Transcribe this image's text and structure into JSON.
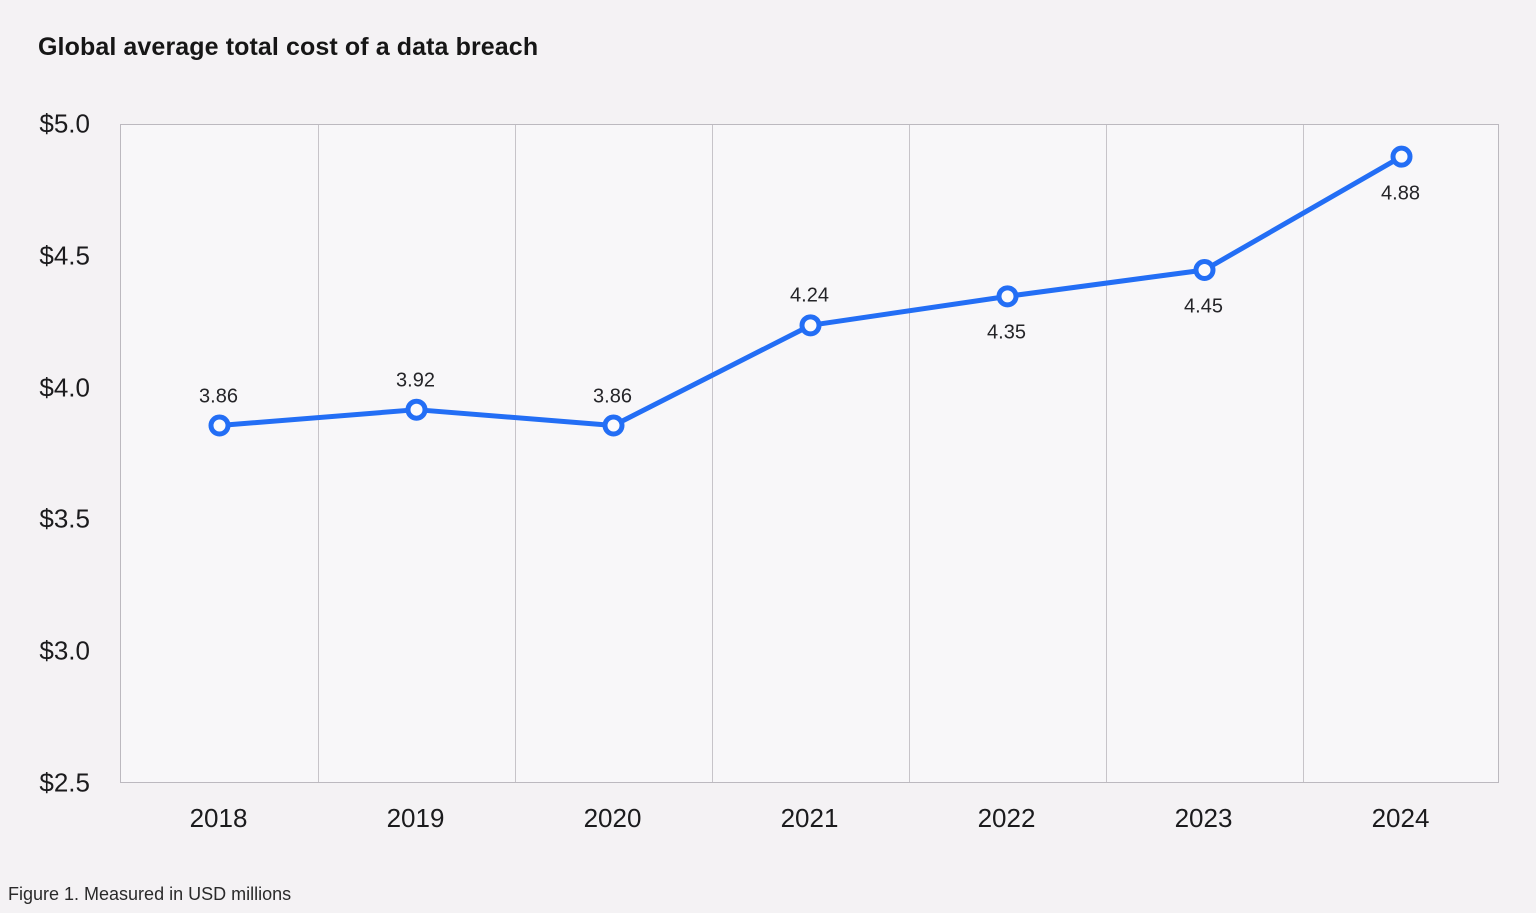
{
  "title": "Global average total cost of a data breach",
  "caption": "Figure 1. Measured in USD millions",
  "chart_data": {
    "type": "line",
    "title": "Global average total cost of a data breach",
    "categories": [
      "2018",
      "2019",
      "2020",
      "2021",
      "2022",
      "2023",
      "2024"
    ],
    "values": [
      3.86,
      3.92,
      3.86,
      4.24,
      4.35,
      4.45,
      4.88
    ],
    "data_labels": [
      "3.86",
      "3.92",
      "3.86",
      "4.24",
      "4.35",
      "4.45",
      "4.88"
    ],
    "label_placement": [
      "above",
      "above",
      "above",
      "above",
      "below",
      "below",
      "below"
    ],
    "y_tick_labels": [
      "$5.0",
      "$4.5",
      "$4.0",
      "$3.5",
      "$3.0",
      "$2.5"
    ],
    "ylim": [
      2.5,
      5.0
    ],
    "xlabel": "",
    "ylabel": "",
    "unit": "USD millions",
    "grid": "vertical-only",
    "legend": "none",
    "colors": {
      "line": "#236ef5",
      "marker_fill": "#fbfafc",
      "marker_stroke": "#236ef5",
      "grid": "#c7c4c9",
      "plot_border": "#bcb9bf",
      "plot_bg": "#f8f7f9",
      "page_bg": "#f4f2f4",
      "label_text": "#242428",
      "title_text": "#161616"
    }
  }
}
